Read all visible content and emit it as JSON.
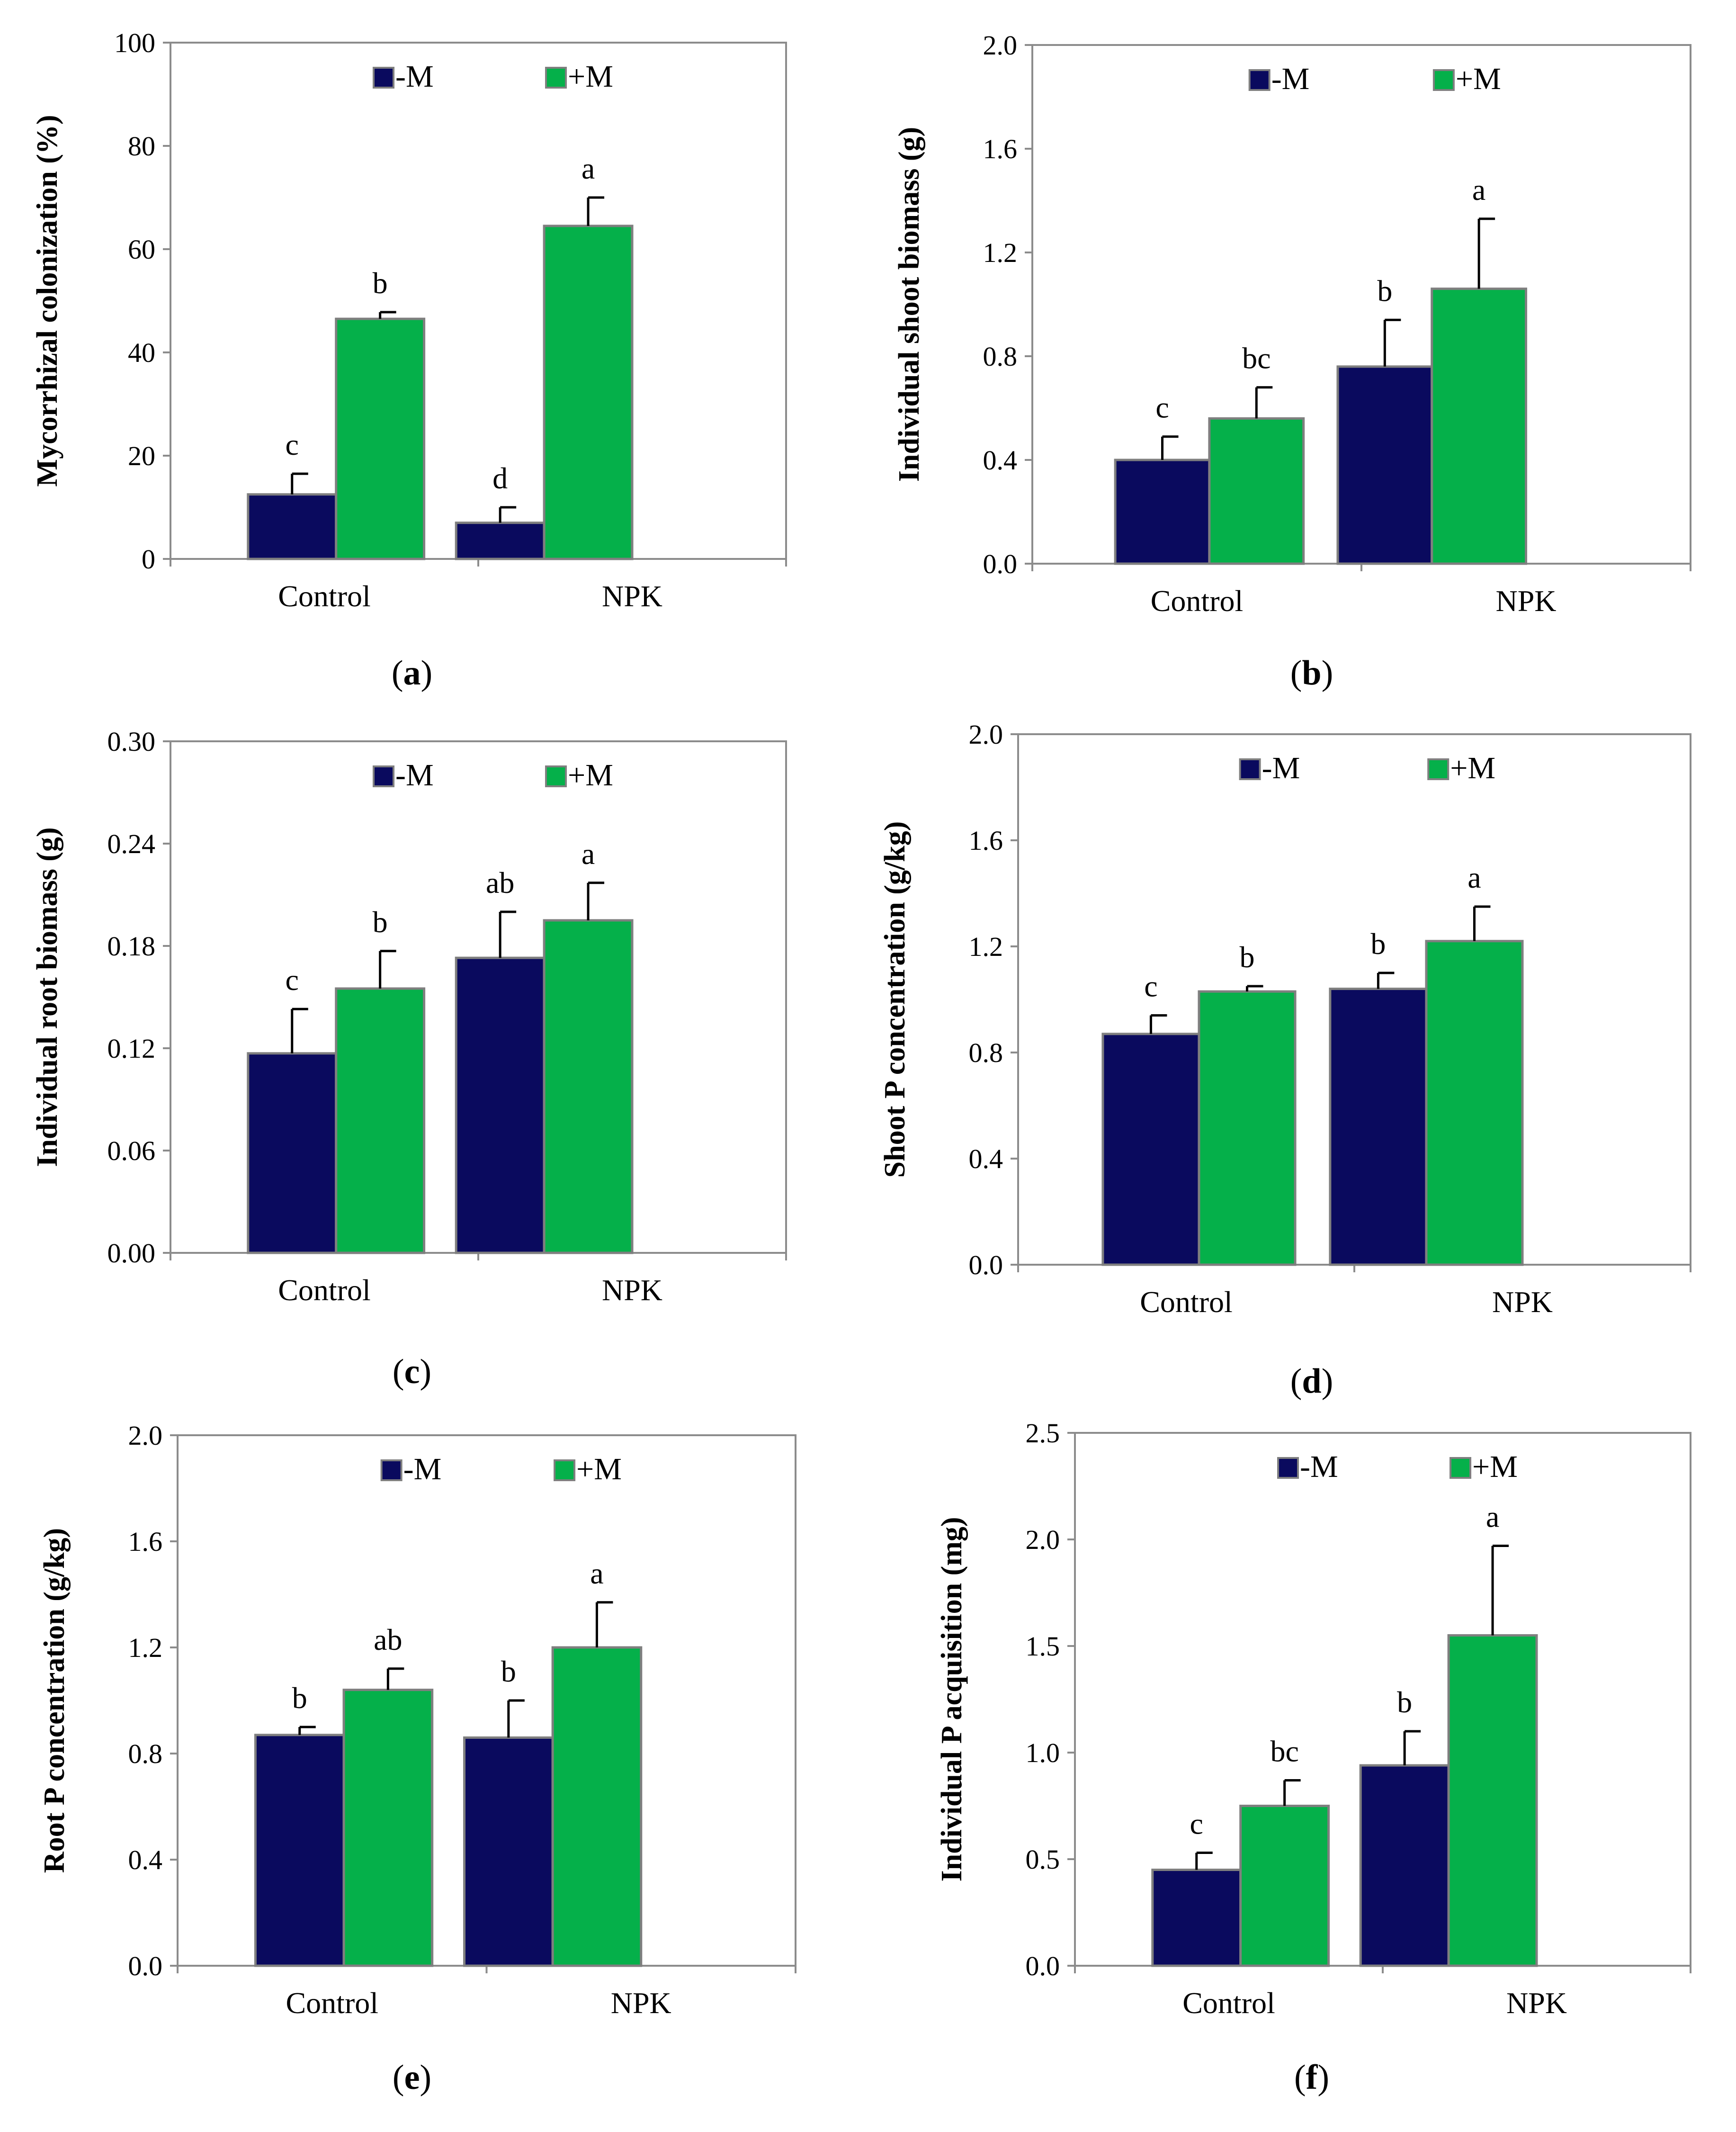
{
  "colors": {
    "minus_m": "#0a0a5e",
    "plus_m": "#05b04a"
  },
  "chart_data": [
    {
      "panel": "a",
      "type": "bar",
      "ylabel": "Mycorrhizal colonization (%)",
      "categories": [
        "Control",
        "NPK"
      ],
      "ylim": [
        0,
        100
      ],
      "yticks": [
        "0",
        "20",
        "40",
        "60",
        "80",
        "100"
      ],
      "series": [
        {
          "name": "-M",
          "values": [
            12.5,
            7
          ],
          "errors": [
            4,
            3
          ],
          "letters": [
            "c",
            "d"
          ]
        },
        {
          "name": "+M",
          "values": [
            46.5,
            64.5
          ],
          "errors": [
            1.3,
            5.5
          ],
          "letters": [
            "b",
            "a"
          ]
        }
      ],
      "legend": [
        "-M",
        "+M"
      ],
      "legend_position": "top-center"
    },
    {
      "panel": "b",
      "type": "bar",
      "ylabel": "Individual shoot biomass (g)",
      "categories": [
        "Control",
        "NPK"
      ],
      "ylim": [
        0,
        2.0
      ],
      "yticks": [
        "0.0",
        "0.4",
        "0.8",
        "1.2",
        "1.6",
        "2.0"
      ],
      "series": [
        {
          "name": "-M",
          "values": [
            0.4,
            0.76
          ],
          "errors": [
            0.09,
            0.18
          ],
          "letters": [
            "c",
            "b"
          ]
        },
        {
          "name": "+M",
          "values": [
            0.56,
            1.06
          ],
          "errors": [
            0.12,
            0.27
          ],
          "letters": [
            "bc",
            "a"
          ]
        }
      ],
      "legend": [
        "-M",
        "+M"
      ],
      "legend_position": "top-center"
    },
    {
      "panel": "c",
      "type": "bar",
      "ylabel": "Individual root biomass (g)",
      "categories": [
        "Control",
        "NPK"
      ],
      "ylim": [
        0,
        0.3
      ],
      "yticks": [
        "0.00",
        "0.06",
        "0.12",
        "0.18",
        "0.24",
        "0.30"
      ],
      "series": [
        {
          "name": "-M",
          "values": [
            0.117,
            0.173
          ],
          "errors": [
            0.026,
            0.027
          ],
          "letters": [
            "c",
            "ab"
          ]
        },
        {
          "name": "+M",
          "values": [
            0.155,
            0.195
          ],
          "errors": [
            0.022,
            0.022
          ],
          "letters": [
            "b",
            "a"
          ]
        }
      ],
      "legend": [
        "-M",
        "+M"
      ],
      "legend_position": "top-center"
    },
    {
      "panel": "d",
      "type": "bar",
      "ylabel": "Shoot P concentration (g/kg)",
      "categories": [
        "Control",
        "NPK"
      ],
      "ylim": [
        0,
        2.0
      ],
      "yticks": [
        "0.0",
        "0.4",
        "0.8",
        "1.2",
        "1.6",
        "2.0"
      ],
      "series": [
        {
          "name": "-M",
          "values": [
            0.87,
            1.04
          ],
          "errors": [
            0.07,
            0.06
          ],
          "letters": [
            "c",
            "b"
          ]
        },
        {
          "name": "+M",
          "values": [
            1.03,
            1.22
          ],
          "errors": [
            0.02,
            0.13
          ],
          "letters": [
            "b",
            "a"
          ]
        }
      ],
      "legend": [
        "-M",
        "+M"
      ],
      "legend_position": "top-center"
    },
    {
      "panel": "e",
      "type": "bar",
      "ylabel": "Root P concentration (g/kg)",
      "categories": [
        "Control",
        "NPK"
      ],
      "ylim": [
        0,
        2.0
      ],
      "yticks": [
        "0.0",
        "0.4",
        "0.8",
        "1.2",
        "1.6",
        "2.0"
      ],
      "series": [
        {
          "name": "-M",
          "values": [
            0.87,
            0.86
          ],
          "errors": [
            0.03,
            0.14
          ],
          "letters": [
            "b",
            "b"
          ]
        },
        {
          "name": "+M",
          "values": [
            1.04,
            1.2
          ],
          "errors": [
            0.08,
            0.17
          ],
          "letters": [
            "ab",
            "a"
          ]
        }
      ],
      "legend": [
        "-M",
        "+M"
      ],
      "legend_position": "top-center"
    },
    {
      "panel": "f",
      "type": "bar",
      "ylabel": "Individual P acquisition (mg)",
      "categories": [
        "Control",
        "NPK"
      ],
      "ylim": [
        0,
        2.5
      ],
      "yticks": [
        "0.0",
        "0.5",
        "1.0",
        "1.5",
        "2.0",
        "2.5"
      ],
      "series": [
        {
          "name": "-M",
          "values": [
            0.45,
            0.94
          ],
          "errors": [
            0.08,
            0.16
          ],
          "letters": [
            "c",
            "b"
          ]
        },
        {
          "name": "+M",
          "values": [
            0.75,
            1.55
          ],
          "errors": [
            0.12,
            0.42
          ],
          "letters": [
            "bc",
            "a"
          ]
        }
      ],
      "legend": [
        "-M",
        "+M"
      ],
      "legend_position": "top-center"
    }
  ]
}
